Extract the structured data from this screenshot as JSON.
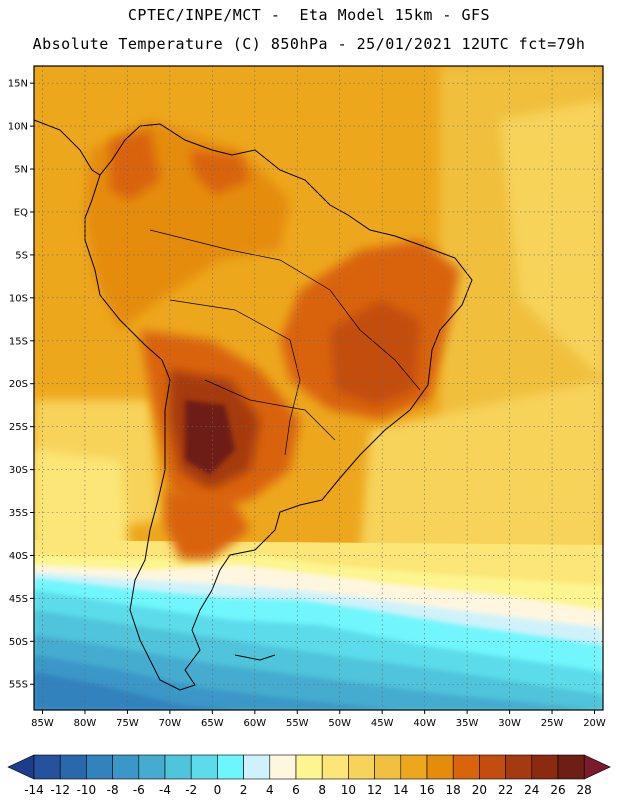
{
  "header": {
    "title_line1": "CPTEC/INPE/MCT -  Eta Model 15km - GFS",
    "title_line2": "Absolute Temperature (C) 850hPa - 25/01/2021 12UTC fct=79h"
  },
  "map": {
    "lon_range": [
      -86,
      -19
    ],
    "lat_range": [
      17,
      -58
    ],
    "lat_ticks": [
      {
        "value": 15,
        "label": "15N"
      },
      {
        "value": 10,
        "label": "10N"
      },
      {
        "value": 5,
        "label": "5N"
      },
      {
        "value": 0,
        "label": "EQ"
      },
      {
        "value": -5,
        "label": "5S"
      },
      {
        "value": -10,
        "label": "10S"
      },
      {
        "value": -15,
        "label": "15S"
      },
      {
        "value": -20,
        "label": "20S"
      },
      {
        "value": -25,
        "label": "25S"
      },
      {
        "value": -30,
        "label": "30S"
      },
      {
        "value": -35,
        "label": "35S"
      },
      {
        "value": -40,
        "label": "40S"
      },
      {
        "value": -45,
        "label": "45S"
      },
      {
        "value": -50,
        "label": "50S"
      },
      {
        "value": -55,
        "label": "55S"
      }
    ],
    "lon_ticks": [
      {
        "value": -85,
        "label": "85W"
      },
      {
        "value": -80,
        "label": "80W"
      },
      {
        "value": -75,
        "label": "75W"
      },
      {
        "value": -70,
        "label": "70W"
      },
      {
        "value": -65,
        "label": "65W"
      },
      {
        "value": -60,
        "label": "60W"
      },
      {
        "value": -55,
        "label": "55W"
      },
      {
        "value": -50,
        "label": "50W"
      },
      {
        "value": -45,
        "label": "45W"
      },
      {
        "value": -40,
        "label": "40W"
      },
      {
        "value": -35,
        "label": "35W"
      },
      {
        "value": -30,
        "label": "30W"
      },
      {
        "value": -25,
        "label": "25W"
      },
      {
        "value": -20,
        "label": "20W"
      }
    ],
    "grid": true,
    "grid_style": "dotted"
  },
  "colorbar": {
    "labels": [
      "-14",
      "-12",
      "-10",
      "-8",
      "-6",
      "-4",
      "-2",
      "0",
      "2",
      "4",
      "6",
      "8",
      "10",
      "12",
      "14",
      "16",
      "18",
      "20",
      "22",
      "24",
      "26",
      "28"
    ],
    "colors": [
      "#1e3c8c",
      "#24529c",
      "#2a68ac",
      "#3182bd",
      "#3b97c7",
      "#45accf",
      "#4fc4da",
      "#5cdcea",
      "#6ff6fc",
      "#cff2fa",
      "#fff6e0",
      "#fdf58f",
      "#fbe677",
      "#f7d35a",
      "#f0c03e",
      "#eda71d",
      "#e58c0c",
      "#d9640c",
      "#c24d0e",
      "#a53a10",
      "#8a2a10",
      "#6e1f13",
      "#7a1a2c"
    ]
  }
}
